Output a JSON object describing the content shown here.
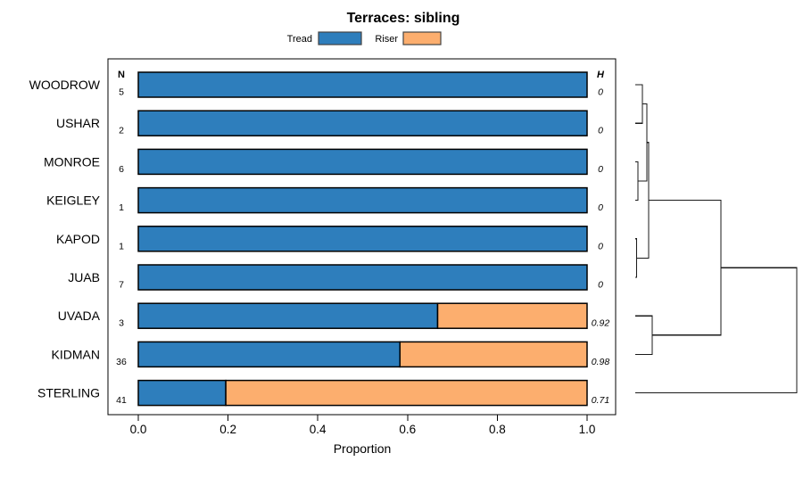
{
  "title": "Terraces: sibling",
  "legend": {
    "items": [
      {
        "label": "Tread",
        "color": "#2E7EBC"
      },
      {
        "label": "Riser",
        "color": "#FCAE6E"
      }
    ]
  },
  "chart_data": {
    "type": "bar",
    "orientation": "horizontal-stacked",
    "title": "Terraces: sibling",
    "xlabel": "Proportion",
    "xlim": [
      0.0,
      1.0
    ],
    "x_ticks": [
      {
        "value": 0.0,
        "label": "0.0"
      },
      {
        "value": 0.2,
        "label": "0.2"
      },
      {
        "value": 0.4,
        "label": "0.4"
      },
      {
        "value": 0.6,
        "label": "0.6"
      },
      {
        "value": 0.8,
        "label": "0.8"
      },
      {
        "value": 1.0,
        "label": "1.0"
      }
    ],
    "categories": [
      "WOODROW",
      "USHAR",
      "MONROE",
      "KEIGLEY",
      "KAPOD",
      "JUAB",
      "UVADA",
      "KIDMAN",
      "STERLING"
    ],
    "series": [
      {
        "name": "Tread",
        "color": "#2E7EBC",
        "values": [
          1.0,
          1.0,
          1.0,
          1.0,
          1.0,
          1.0,
          0.667,
          0.583,
          0.195
        ]
      },
      {
        "name": "Riser",
        "color": "#FCAE6E",
        "values": [
          0.0,
          0.0,
          0.0,
          0.0,
          0.0,
          0.0,
          0.333,
          0.417,
          0.805
        ]
      }
    ],
    "n_header": "N",
    "n_values": [
      "5",
      "2",
      "6",
      "1",
      "1",
      "7",
      "3",
      "36",
      "41"
    ],
    "h_header": "H",
    "h_values": [
      "0",
      "0",
      "0",
      "0",
      "0",
      "0",
      "0.92",
      "0.98",
      "0.71"
    ],
    "dendrogram": {
      "merges": [
        {
          "id": "m1",
          "children": [
            "WOODROW",
            "USHAR"
          ],
          "height": 0.044
        },
        {
          "id": "m2",
          "children": [
            "MONROE",
            "KEIGLEY"
          ],
          "height": 0.017
        },
        {
          "id": "m3",
          "children": [
            "m1",
            "m2"
          ],
          "height": 0.072
        },
        {
          "id": "m4",
          "children": [
            "KAPOD",
            "JUAB"
          ],
          "height": 0.008
        },
        {
          "id": "m5",
          "children": [
            "m3",
            "m4"
          ],
          "height": 0.083
        },
        {
          "id": "m6",
          "children": [
            "UVADA",
            "KIDMAN"
          ],
          "height": 0.105
        },
        {
          "id": "m7",
          "children": [
            "m5",
            "m6"
          ],
          "height": 0.53
        },
        {
          "id": "m8",
          "children": [
            "m7",
            "STERLING"
          ],
          "height": 1.0
        }
      ]
    }
  }
}
